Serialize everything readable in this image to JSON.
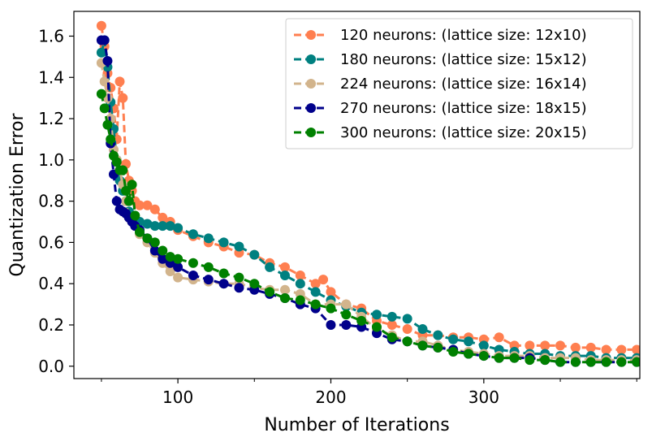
{
  "chart_data": {
    "type": "line",
    "title": "",
    "xlabel": "Number of Iterations",
    "ylabel": "Quantization Error",
    "xlim": [
      32,
      402
    ],
    "ylim": [
      -0.06,
      1.72
    ],
    "x_ticks": [
      100,
      200,
      300
    ],
    "x_tick_labels": [
      "100",
      "200",
      "300"
    ],
    "y_ticks": [
      0.0,
      0.2,
      0.4,
      0.6,
      0.8,
      1.0,
      1.2,
      1.4,
      1.6
    ],
    "y_tick_labels": [
      "0.0",
      "0.2",
      "0.4",
      "0.6",
      "0.8",
      "1.0",
      "1.2",
      "1.4",
      "1.6"
    ],
    "grid": false,
    "legend_position": "top-right",
    "series": [
      {
        "name": "120 neurons: (lattice size: 12x10)",
        "color": "#FF7F50",
        "x": [
          50,
          52,
          54,
          56,
          58,
          60,
          62,
          64,
          66,
          68,
          70,
          72,
          75,
          80,
          85,
          90,
          95,
          100,
          110,
          120,
          130,
          140,
          150,
          160,
          170,
          180,
          190,
          195,
          200,
          210,
          220,
          230,
          240,
          250,
          260,
          270,
          280,
          290,
          300,
          310,
          320,
          330,
          340,
          350,
          360,
          370,
          380,
          390,
          400
        ],
        "y": [
          1.65,
          1.55,
          1.42,
          1.35,
          1.25,
          1.1,
          1.38,
          1.3,
          0.98,
          0.9,
          0.85,
          0.8,
          0.78,
          0.78,
          0.76,
          0.72,
          0.7,
          0.66,
          0.63,
          0.6,
          0.58,
          0.55,
          0.54,
          0.5,
          0.48,
          0.44,
          0.4,
          0.42,
          0.36,
          0.3,
          0.28,
          0.22,
          0.2,
          0.18,
          0.15,
          0.15,
          0.14,
          0.14,
          0.13,
          0.14,
          0.1,
          0.1,
          0.1,
          0.1,
          0.09,
          0.09,
          0.08,
          0.08,
          0.08
        ]
      },
      {
        "name": "180 neurons: (lattice size: 15x12)",
        "color": "#008080",
        "x": [
          50,
          52,
          54,
          56,
          58,
          60,
          62,
          64,
          66,
          68,
          70,
          72,
          75,
          80,
          85,
          90,
          95,
          100,
          110,
          120,
          130,
          140,
          150,
          160,
          170,
          180,
          190,
          200,
          210,
          220,
          230,
          240,
          250,
          260,
          270,
          280,
          290,
          300,
          310,
          320,
          330,
          340,
          350,
          360,
          370,
          380,
          390,
          400
        ],
        "y": [
          1.52,
          1.58,
          1.45,
          1.28,
          1.15,
          1.0,
          0.9,
          0.85,
          0.8,
          0.75,
          0.72,
          0.7,
          0.7,
          0.69,
          0.68,
          0.68,
          0.68,
          0.67,
          0.64,
          0.62,
          0.6,
          0.58,
          0.54,
          0.48,
          0.44,
          0.4,
          0.36,
          0.32,
          0.29,
          0.26,
          0.25,
          0.24,
          0.23,
          0.18,
          0.15,
          0.13,
          0.12,
          0.1,
          0.08,
          0.07,
          0.06,
          0.06,
          0.05,
          0.05,
          0.05,
          0.04,
          0.04,
          0.04
        ]
      },
      {
        "name": "224 neurons: (lattice size: 16x14)",
        "color": "#D2B48C",
        "x": [
          50,
          52,
          54,
          56,
          58,
          60,
          62,
          64,
          66,
          68,
          70,
          72,
          75,
          80,
          85,
          90,
          95,
          100,
          110,
          120,
          130,
          140,
          150,
          160,
          170,
          180,
          190,
          200,
          210,
          220,
          230,
          240,
          250,
          260,
          270,
          280,
          290,
          300,
          310,
          320,
          330,
          340,
          350,
          360,
          370,
          380,
          390,
          400
        ],
        "y": [
          1.47,
          1.38,
          1.3,
          1.2,
          1.05,
          1.0,
          0.95,
          0.88,
          0.8,
          0.72,
          0.7,
          0.68,
          0.64,
          0.6,
          0.55,
          0.5,
          0.46,
          0.43,
          0.42,
          0.41,
          0.4,
          0.4,
          0.38,
          0.37,
          0.37,
          0.35,
          0.3,
          0.3,
          0.3,
          0.24,
          0.18,
          0.15,
          0.12,
          0.12,
          0.1,
          0.08,
          0.07,
          0.06,
          0.05,
          0.05,
          0.05,
          0.04,
          0.04,
          0.04,
          0.03,
          0.03,
          0.03,
          0.03
        ]
      },
      {
        "name": "270 neurons: (lattice size: 18x15)",
        "color": "#00008B",
        "x": [
          50,
          52,
          54,
          56,
          58,
          60,
          62,
          64,
          66,
          68,
          70,
          72,
          75,
          80,
          85,
          90,
          95,
          100,
          110,
          120,
          130,
          140,
          150,
          160,
          170,
          180,
          190,
          200,
          210,
          220,
          230,
          240,
          250,
          260,
          270,
          280,
          290,
          300,
          310,
          320,
          330,
          340,
          350,
          360,
          370,
          380,
          390,
          400
        ],
        "y": [
          1.58,
          1.58,
          1.48,
          1.08,
          0.93,
          0.8,
          0.76,
          0.75,
          0.74,
          0.72,
          0.7,
          0.68,
          0.66,
          0.62,
          0.56,
          0.52,
          0.5,
          0.48,
          0.44,
          0.42,
          0.4,
          0.38,
          0.37,
          0.35,
          0.33,
          0.3,
          0.28,
          0.2,
          0.2,
          0.19,
          0.16,
          0.13,
          0.12,
          0.1,
          0.09,
          0.08,
          0.06,
          0.05,
          0.04,
          0.04,
          0.04,
          0.03,
          0.02,
          0.02,
          0.02,
          0.02,
          0.02,
          0.02
        ]
      },
      {
        "name": "300 neurons: (lattice size: 20x15)",
        "color": "#008000",
        "x": [
          50,
          52,
          54,
          56,
          58,
          60,
          62,
          64,
          66,
          68,
          70,
          72,
          75,
          80,
          85,
          90,
          95,
          100,
          110,
          120,
          130,
          140,
          150,
          160,
          170,
          180,
          190,
          200,
          210,
          220,
          230,
          240,
          250,
          260,
          270,
          280,
          290,
          300,
          310,
          320,
          330,
          340,
          350,
          360,
          370,
          380,
          390,
          400
        ],
        "y": [
          1.32,
          1.25,
          1.17,
          1.1,
          1.02,
          0.99,
          0.95,
          0.95,
          0.85,
          0.8,
          0.88,
          0.73,
          0.65,
          0.62,
          0.6,
          0.56,
          0.53,
          0.52,
          0.5,
          0.48,
          0.45,
          0.43,
          0.4,
          0.36,
          0.33,
          0.32,
          0.3,
          0.28,
          0.25,
          0.22,
          0.19,
          0.14,
          0.12,
          0.1,
          0.09,
          0.07,
          0.06,
          0.05,
          0.04,
          0.04,
          0.03,
          0.03,
          0.02,
          0.02,
          0.02,
          0.02,
          0.02,
          0.02
        ]
      }
    ]
  }
}
